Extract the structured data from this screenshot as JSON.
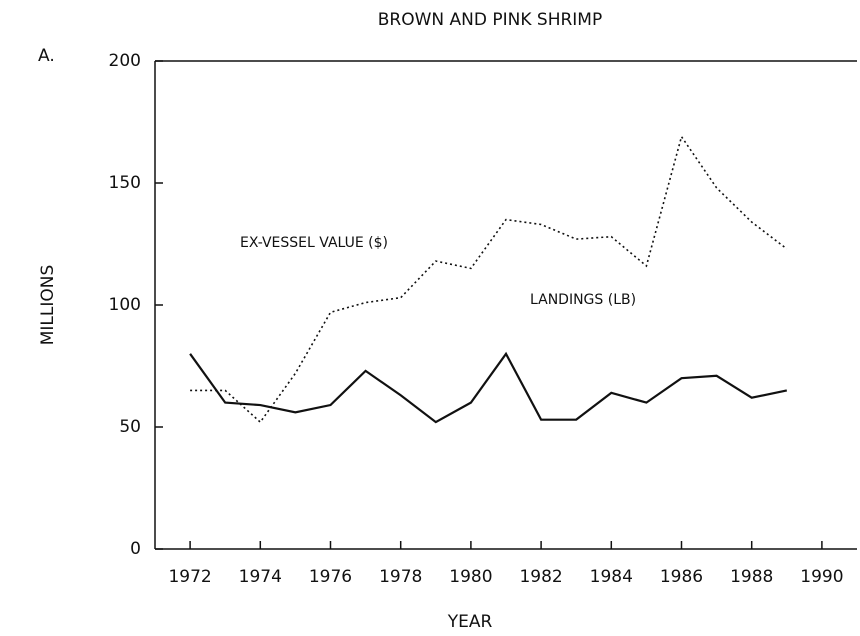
{
  "chart_data": {
    "type": "line",
    "title": "BROWN AND PINK SHRIMP",
    "panel_label": "A.",
    "x_label": "YEAR",
    "y_label": "MILLIONS",
    "x": [
      1972,
      1973,
      1974,
      1975,
      1976,
      1977,
      1978,
      1979,
      1980,
      1981,
      1982,
      1983,
      1984,
      1985,
      1986,
      1987,
      1988,
      1989
    ],
    "series": [
      {
        "name": "EX-VESSEL VALUE ($)",
        "color": "#111111",
        "dash": true,
        "values": [
          65,
          65,
          52,
          72,
          97,
          101,
          103,
          118,
          115,
          135,
          133,
          127,
          128,
          116,
          169,
          148,
          134,
          123
        ]
      },
      {
        "name": "LANDINGS (LB)",
        "color": "#111111",
        "dash": false,
        "values": [
          80,
          60,
          59,
          56,
          59,
          73,
          63,
          52,
          60,
          80,
          53,
          53,
          64,
          60,
          70,
          71,
          62,
          65
        ]
      }
    ],
    "xlim": [
      1971,
      1991
    ],
    "xticks": [
      1972,
      1974,
      1976,
      1978,
      1980,
      1982,
      1984,
      1986,
      1988,
      1990
    ],
    "ylim": [
      0,
      200
    ],
    "yticks": [
      0,
      50,
      100,
      150,
      200
    ],
    "grid": false
  }
}
